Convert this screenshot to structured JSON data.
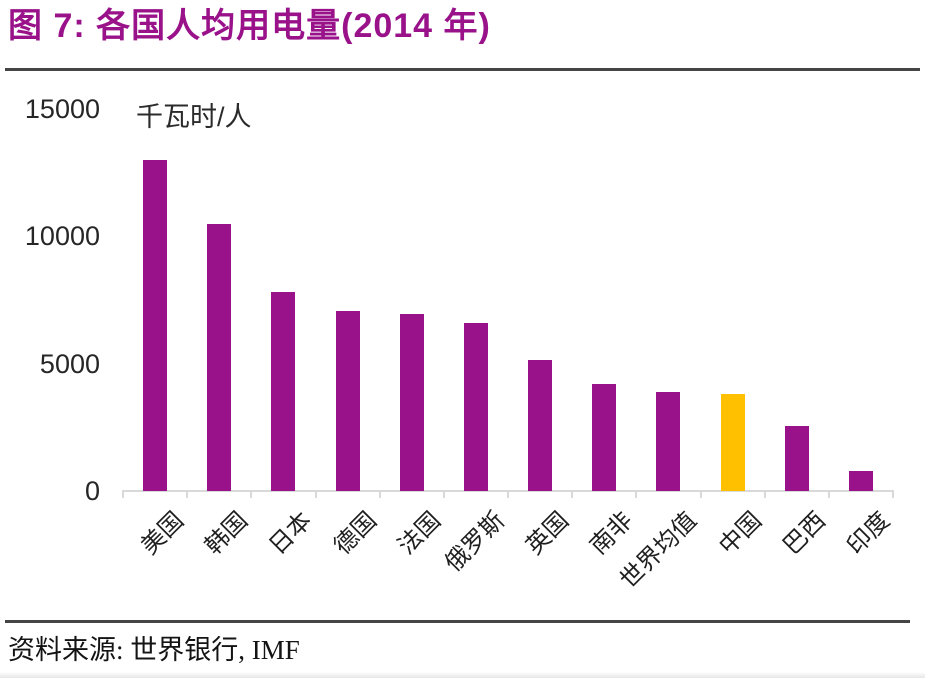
{
  "chart_data": {
    "type": "bar",
    "title": "图 7: 各国人均用电量(2014 年)",
    "unit_label": "千瓦时/人",
    "categories": [
      "美国",
      "韩国",
      "日本",
      "德国",
      "法国",
      "俄罗斯",
      "英国",
      "南非",
      "世界均值",
      "中国",
      "巴西",
      "印度"
    ],
    "category_ids": [
      "usa",
      "south-korea",
      "japan",
      "germany",
      "france",
      "russia",
      "uk",
      "south-africa",
      "world-average",
      "china",
      "brazil",
      "india"
    ],
    "values": [
      13000,
      10500,
      7800,
      7050,
      6950,
      6600,
      5130,
      4200,
      3900,
      3800,
      2550,
      800
    ],
    "yticks": [
      0,
      5000,
      10000,
      15000
    ],
    "ylim": [
      0,
      15000
    ],
    "grid": false,
    "legend_position": "none",
    "bar_color": "#99128A",
    "highlight_color": "#FFC000",
    "highlight_index": 9,
    "highlight_category": "中国",
    "axis_color": "#D9D9D9",
    "source": "资料来源: 世界银行, IMF"
  }
}
